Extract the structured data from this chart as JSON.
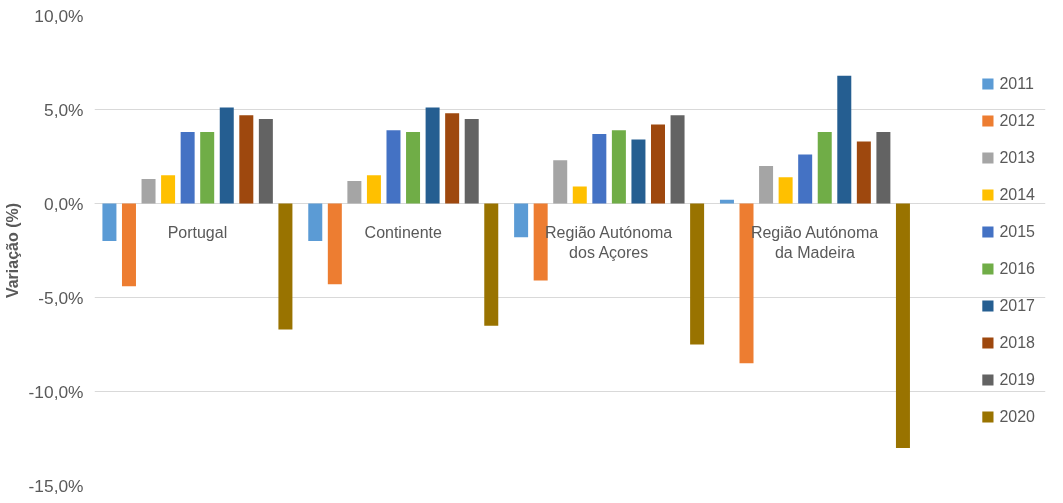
{
  "chart_data": {
    "type": "bar",
    "ylabel": "Variação (%)",
    "categories": [
      "Portugal",
      "Continente",
      "Região Autónoma dos Açores",
      "Região Autónoma da Madeira"
    ],
    "series": [
      {
        "name": "2011",
        "color": "#5b9bd5",
        "values": [
          -2.0,
          -2.0,
          -1.8,
          0.2
        ]
      },
      {
        "name": "2012",
        "color": "#ed7d31",
        "values": [
          -4.4,
          -4.3,
          -4.1,
          -8.5
        ]
      },
      {
        "name": "2013",
        "color": "#a5a5a5",
        "values": [
          1.3,
          1.2,
          2.3,
          2.0
        ]
      },
      {
        "name": "2014",
        "color": "#ffc000",
        "values": [
          1.5,
          1.5,
          0.9,
          1.4
        ]
      },
      {
        "name": "2015",
        "color": "#4472c4",
        "values": [
          3.8,
          3.9,
          3.7,
          2.6
        ]
      },
      {
        "name": "2016",
        "color": "#70ad47",
        "values": [
          3.8,
          3.8,
          3.9,
          3.8
        ]
      },
      {
        "name": "2017",
        "color": "#255e91",
        "values": [
          5.1,
          5.1,
          3.4,
          6.8
        ]
      },
      {
        "name": "2018",
        "color": "#9e480e",
        "values": [
          4.7,
          4.8,
          4.2,
          3.3
        ]
      },
      {
        "name": "2019",
        "color": "#636363",
        "values": [
          4.5,
          4.5,
          4.7,
          3.8
        ]
      },
      {
        "name": "2020",
        "color": "#997300",
        "values": [
          -6.7,
          -6.5,
          -7.5,
          -13.0
        ]
      }
    ],
    "ylim": [
      -15,
      10
    ],
    "yticks": [
      {
        "value": -15,
        "label": "-15,0%"
      },
      {
        "value": -10,
        "label": "-10,0%"
      },
      {
        "value": -5,
        "label": "-5,0%"
      },
      {
        "value": 0,
        "label": "0,0%"
      },
      {
        "value": 5,
        "label": "5,0%"
      },
      {
        "value": 10,
        "label": "10,0%"
      }
    ],
    "grid": "y",
    "legend": "right"
  }
}
